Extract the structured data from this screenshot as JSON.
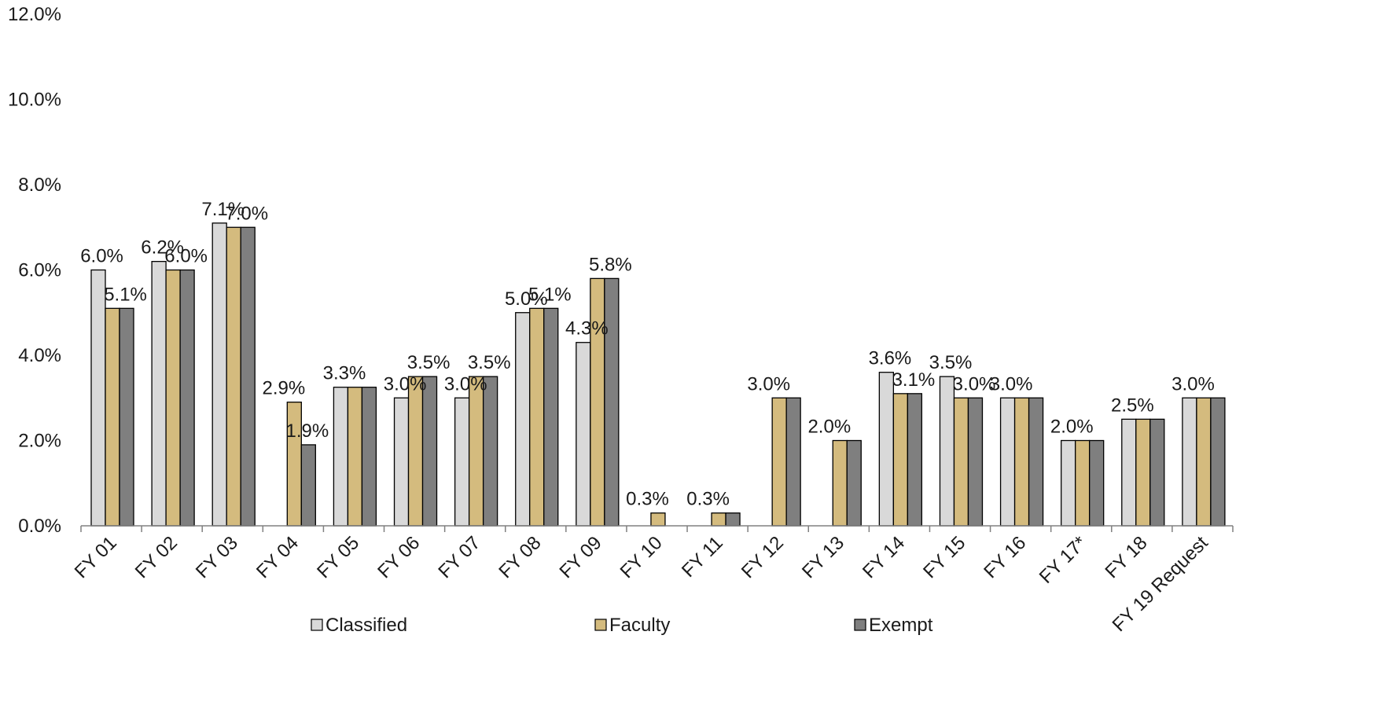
{
  "chart_data": {
    "type": "bar",
    "title": "",
    "xlabel": "",
    "ylabel": "",
    "ylim": [
      0,
      12
    ],
    "y_ticks": [
      "0.0%",
      "2.0%",
      "4.0%",
      "6.0%",
      "8.0%",
      "10.0%",
      "12.0%"
    ],
    "grid": false,
    "legend_position": "bottom",
    "categories": [
      "FY 01",
      "FY 02",
      "FY 03",
      "FY 04",
      "FY 05",
      "FY 06",
      "FY 07",
      "FY 08",
      "FY 09",
      "FY 10",
      "FY 11",
      "FY 12",
      "FY 13",
      "FY 14",
      "FY 15",
      "FY 16",
      "FY 17*",
      "FY 18",
      "FY 19 Request"
    ],
    "series": [
      {
        "name": "Classified",
        "color": "#d9d9d9",
        "values": [
          6.0,
          6.2,
          7.1,
          null,
          3.25,
          3.0,
          3.0,
          5.0,
          4.3,
          null,
          null,
          null,
          null,
          3.6,
          3.5,
          3.0,
          2.0,
          2.5,
          3.0
        ]
      },
      {
        "name": "Faculty",
        "color": "#d4bb7e",
        "values": [
          5.1,
          6.0,
          7.0,
          2.9,
          3.25,
          3.5,
          3.5,
          5.1,
          5.8,
          0.3,
          0.3,
          3.0,
          2.0,
          3.1,
          3.0,
          3.0,
          2.0,
          2.5,
          3.0
        ]
      },
      {
        "name": "Exempt",
        "color": "#7f7f7f",
        "values": [
          5.1,
          6.0,
          7.0,
          1.9,
          3.25,
          3.5,
          3.5,
          5.1,
          5.8,
          null,
          0.3,
          3.0,
          2.0,
          3.1,
          3.0,
          3.0,
          2.0,
          2.5,
          3.0
        ]
      }
    ],
    "data_labels": [
      {
        "text": "6.0%",
        "cat": 0,
        "value": 6.0
      },
      {
        "text": "5.1%",
        "cat": 0,
        "value": 5.1
      },
      {
        "text": "6.2%",
        "cat": 1,
        "value": 6.2
      },
      {
        "text": "6.0%",
        "cat": 1,
        "value": 6.0
      },
      {
        "text": "7.1%",
        "cat": 2,
        "value": 7.1
      },
      {
        "text": "7.0%",
        "cat": 2,
        "value": 7.0
      },
      {
        "text": "2.9%",
        "cat": 3,
        "value": 2.9
      },
      {
        "text": "1.9%",
        "cat": 3,
        "value": 1.9
      },
      {
        "text": "3.3%",
        "cat": 4,
        "value": 3.25
      },
      {
        "text": "3.0%",
        "cat": 5,
        "value": 3.0
      },
      {
        "text": "3.5%",
        "cat": 5,
        "value": 3.5
      },
      {
        "text": "3.0%",
        "cat": 6,
        "value": 3.0
      },
      {
        "text": "3.5%",
        "cat": 6,
        "value": 3.5
      },
      {
        "text": "5.0%",
        "cat": 7,
        "value": 5.0
      },
      {
        "text": "5.1%",
        "cat": 7,
        "value": 5.1
      },
      {
        "text": "4.3%",
        "cat": 8,
        "value": 4.3
      },
      {
        "text": "5.8%",
        "cat": 8,
        "value": 5.8
      },
      {
        "text": "0.3%",
        "cat": 9,
        "value": 0.3
      },
      {
        "text": "0.3%",
        "cat": 10,
        "value": 0.3
      },
      {
        "text": "3.0%",
        "cat": 11,
        "value": 3.0
      },
      {
        "text": "2.0%",
        "cat": 12,
        "value": 2.0
      },
      {
        "text": "3.6%",
        "cat": 13,
        "value": 3.6
      },
      {
        "text": "3.1%",
        "cat": 13,
        "value": 3.1
      },
      {
        "text": "3.5%",
        "cat": 14,
        "value": 3.5
      },
      {
        "text": "3.0%",
        "cat": 14,
        "value": 3.0
      },
      {
        "text": "3.0%",
        "cat": 15,
        "value": 3.0
      },
      {
        "text": "2.0%",
        "cat": 16,
        "value": 2.0
      },
      {
        "text": "2.5%",
        "cat": 17,
        "value": 2.5
      },
      {
        "text": "3.0%",
        "cat": 18,
        "value": 3.0
      }
    ]
  }
}
